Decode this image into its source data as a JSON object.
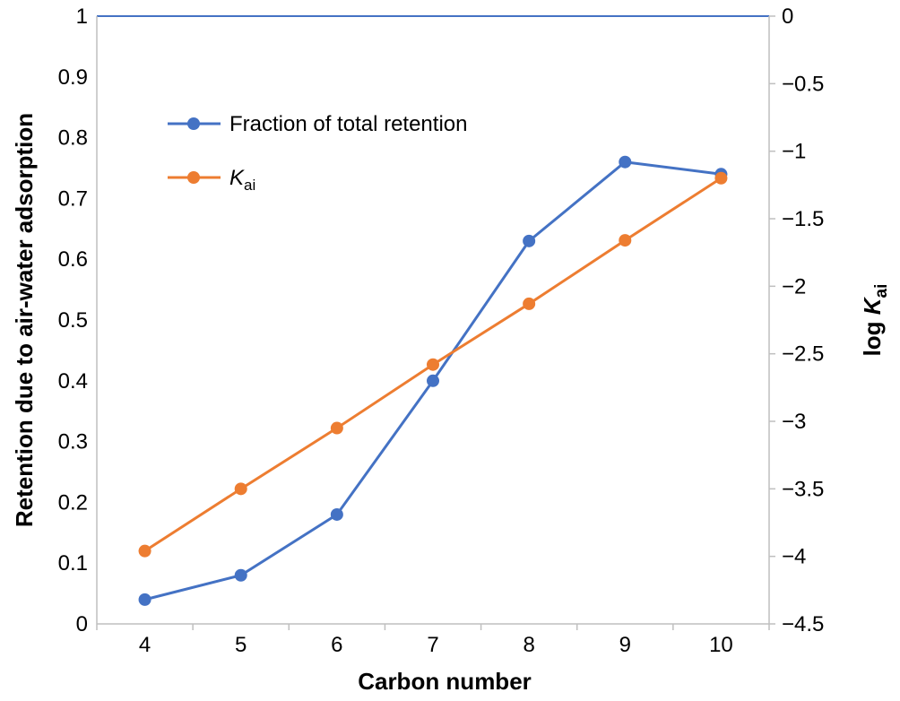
{
  "chart_data": {
    "type": "line",
    "x": [
      4,
      5,
      6,
      7,
      8,
      9,
      10
    ],
    "xlabel": "Carbon number",
    "ylabel": "Retention due to air-water adsorption",
    "y2label": {
      "prefix": "log ",
      "symbol": "K",
      "subscript": "ai"
    },
    "ylim": [
      0,
      1
    ],
    "y2lim": [
      -4.5,
      0
    ],
    "xticks": [
      "4",
      "5",
      "6",
      "7",
      "8",
      "9",
      "10"
    ],
    "yticks": [
      "0",
      "0.1",
      "0.2",
      "0.3",
      "0.4",
      "0.5",
      "0.6",
      "0.7",
      "0.8",
      "0.9",
      "1"
    ],
    "y2ticks": [
      "0",
      "−0.5",
      "−1",
      "−1.5",
      "−2",
      "−2.5",
      "−3",
      "−3.5",
      "−4",
      "−4.5"
    ],
    "grid": false,
    "legend_position": "upper-left",
    "series": [
      {
        "name": "Fraction of total retention",
        "axis": "left",
        "color": "#4472C4",
        "values": [
          0.04,
          0.08,
          0.18,
          0.4,
          0.63,
          0.76,
          0.74
        ]
      },
      {
        "name": {
          "symbol": "K",
          "subscript": "ai"
        },
        "axis": "right",
        "color": "#ED7D31",
        "values": [
          -3.96,
          -3.5,
          -3.05,
          -2.58,
          -2.13,
          -1.66,
          -1.2
        ]
      }
    ]
  }
}
